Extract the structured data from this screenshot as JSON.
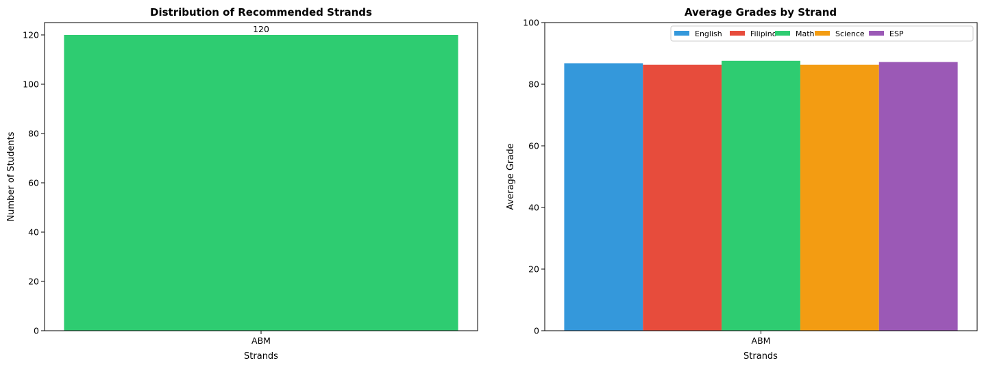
{
  "chart_data": [
    {
      "type": "bar",
      "title": "Distribution of Recommended Strands",
      "xlabel": "Strands",
      "ylabel": "Number of Students",
      "categories": [
        "ABM"
      ],
      "values": [
        120
      ],
      "data_labels": [
        "120"
      ],
      "ylim": [
        0,
        125
      ],
      "yticks": [
        "0",
        "20",
        "40",
        "60",
        "80",
        "100",
        "120"
      ],
      "grid": false,
      "bar_color": "#2ecc71"
    },
    {
      "type": "bar",
      "title": "Average Grades by Strand",
      "xlabel": "Strands",
      "ylabel": "Average Grade",
      "categories": [
        "ABM"
      ],
      "series": [
        {
          "name": "English",
          "values": [
            86.8
          ],
          "color": "#3498db"
        },
        {
          "name": "Filipino",
          "values": [
            86.3
          ],
          "color": "#e74c3c"
        },
        {
          "name": "Math",
          "values": [
            87.6
          ],
          "color": "#2ecc71"
        },
        {
          "name": "Science",
          "values": [
            86.3
          ],
          "color": "#f39c12"
        },
        {
          "name": "ESP",
          "values": [
            87.2
          ],
          "color": "#9b59b6"
        }
      ],
      "ylim": [
        0,
        100
      ],
      "yticks": [
        "0",
        "20",
        "40",
        "60",
        "80",
        "100"
      ],
      "grid": false,
      "legend_position": "top-right"
    }
  ]
}
